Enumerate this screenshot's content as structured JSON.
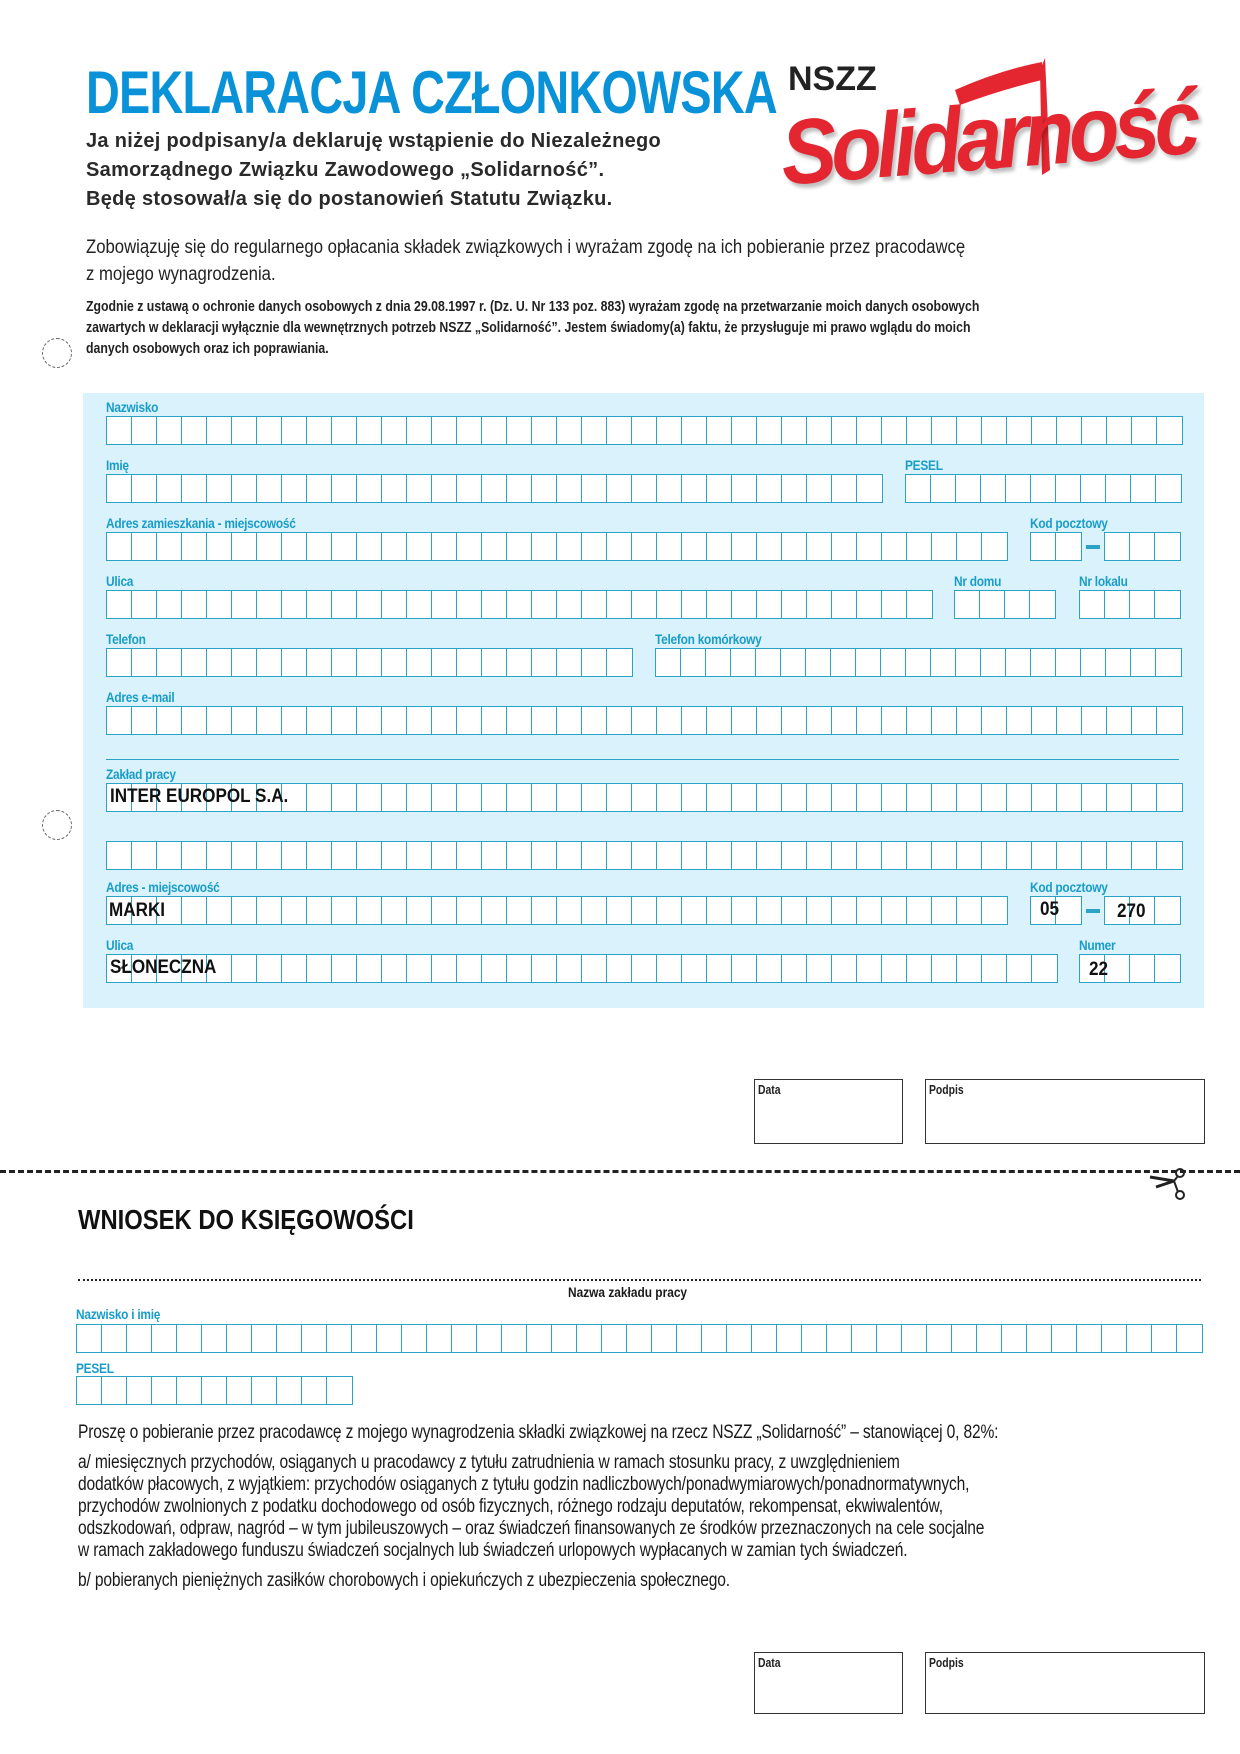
{
  "header": {
    "title": "DEKLARACJA CZŁONKOWSKA",
    "intro_lines": [
      "Ja niżej podpisany/a deklaruję wstąpienie do Niezależnego",
      "Samorządnego Związku Zawodowego „Solidarność”.",
      "Będę stosował/a się do postanowień Statutu Związku."
    ],
    "logo": {
      "top_text": "NSZZ",
      "wordmark": "Solidarność",
      "color": "#e3262f"
    }
  },
  "commitment": [
    "Zobowiązuję się do regularnego opłacania składek związkowych i wyrażam zgodę na ich pobieranie przez pracodawcę",
    "z mojego wynagrodzenia."
  ],
  "consent": [
    "Zgodnie z ustawą o ochronie danych osobowych z dnia 29.08.1997 r. (Dz. U. Nr 133 poz. 883) wyrażam zgodę na przetwarzanie moich danych osobowych",
    "zawartych w deklaracji wyłącznie dla wewnętrznych potrzeb NSZZ „Solidarność”.  Jestem świadomy(a) faktu, że przysługuje mi prawo wglądu do moich",
    "danych osobowych oraz ich poprawiania."
  ],
  "form": {
    "labels": {
      "surname": "Nazwisko",
      "first_name": "Imię",
      "pesel": "PESEL",
      "home_city": "Adres zamieszkania - miejscowość",
      "home_postcode": "Kod pocztowy",
      "street": "Ulica",
      "house_no": "Nr domu",
      "flat_no": "Nr lokalu",
      "phone": "Telefon",
      "mobile": "Telefon komórkowy",
      "email": "Adres e-mail",
      "workplace": "Zakład pracy",
      "work_city": "Adres - miejscowość",
      "work_postcode": "Kod pocztowy",
      "work_street": "Ulica",
      "work_number": "Numer"
    },
    "values": {
      "workplace": "INTER EUROPOL S.A.",
      "work_city": "MARKI",
      "work_postcode_a": "05",
      "work_postcode_b": "270",
      "work_street": "SŁONECZNA",
      "work_number": "22"
    },
    "accent_color": "#2aa3c7",
    "panel_color": "#d9f2fb"
  },
  "signature": {
    "date_label": "Data",
    "sign_label": "Podpis"
  },
  "request": {
    "title": "WNIOSEK DO KSIĘGOWOŚCI",
    "workplace_caption": "Nazwa zakładu pracy",
    "name_label": "Nazwisko i imię",
    "pesel_label": "PESEL",
    "body": [
      "Proszę o pobieranie przez pracodawcę z mojego wynagrodzenia składki związkowej na rzecz NSZZ „Solidarność” – stanowiącej 0, 82%:",
      "a/ miesięcznych przychodów, osiąganych u pracodawcy z tytułu zatrudnienia w ramach stosunku pracy, z uwzględnieniem",
      "dodatków płacowych, z wyjątkiem: przychodów osiąganych z tytułu godzin nadliczbowych/ponadwymiarowych/ponadnormatywnych,",
      "przychodów zwolnionych z podatku dochodowego od osób fizycznych, różnego rodzaju deputatów, rekompensat, ekwiwalentów,",
      "odszkodowań, odpraw, nagród – w tym jubileuszowych – oraz świadczeń finansowanych ze środków przeznaczonych na cele socjalne",
      "w ramach zakładowego funduszu świadczeń socjalnych lub świadczeń urlopowych wypłacanych w zamian tych świadczeń.",
      "b/ pobieranych pieniężnych zasiłków chorobowych i opiekuńczych z ubezpieczenia społecznego."
    ],
    "cut_icon": "scissors-icon"
  }
}
